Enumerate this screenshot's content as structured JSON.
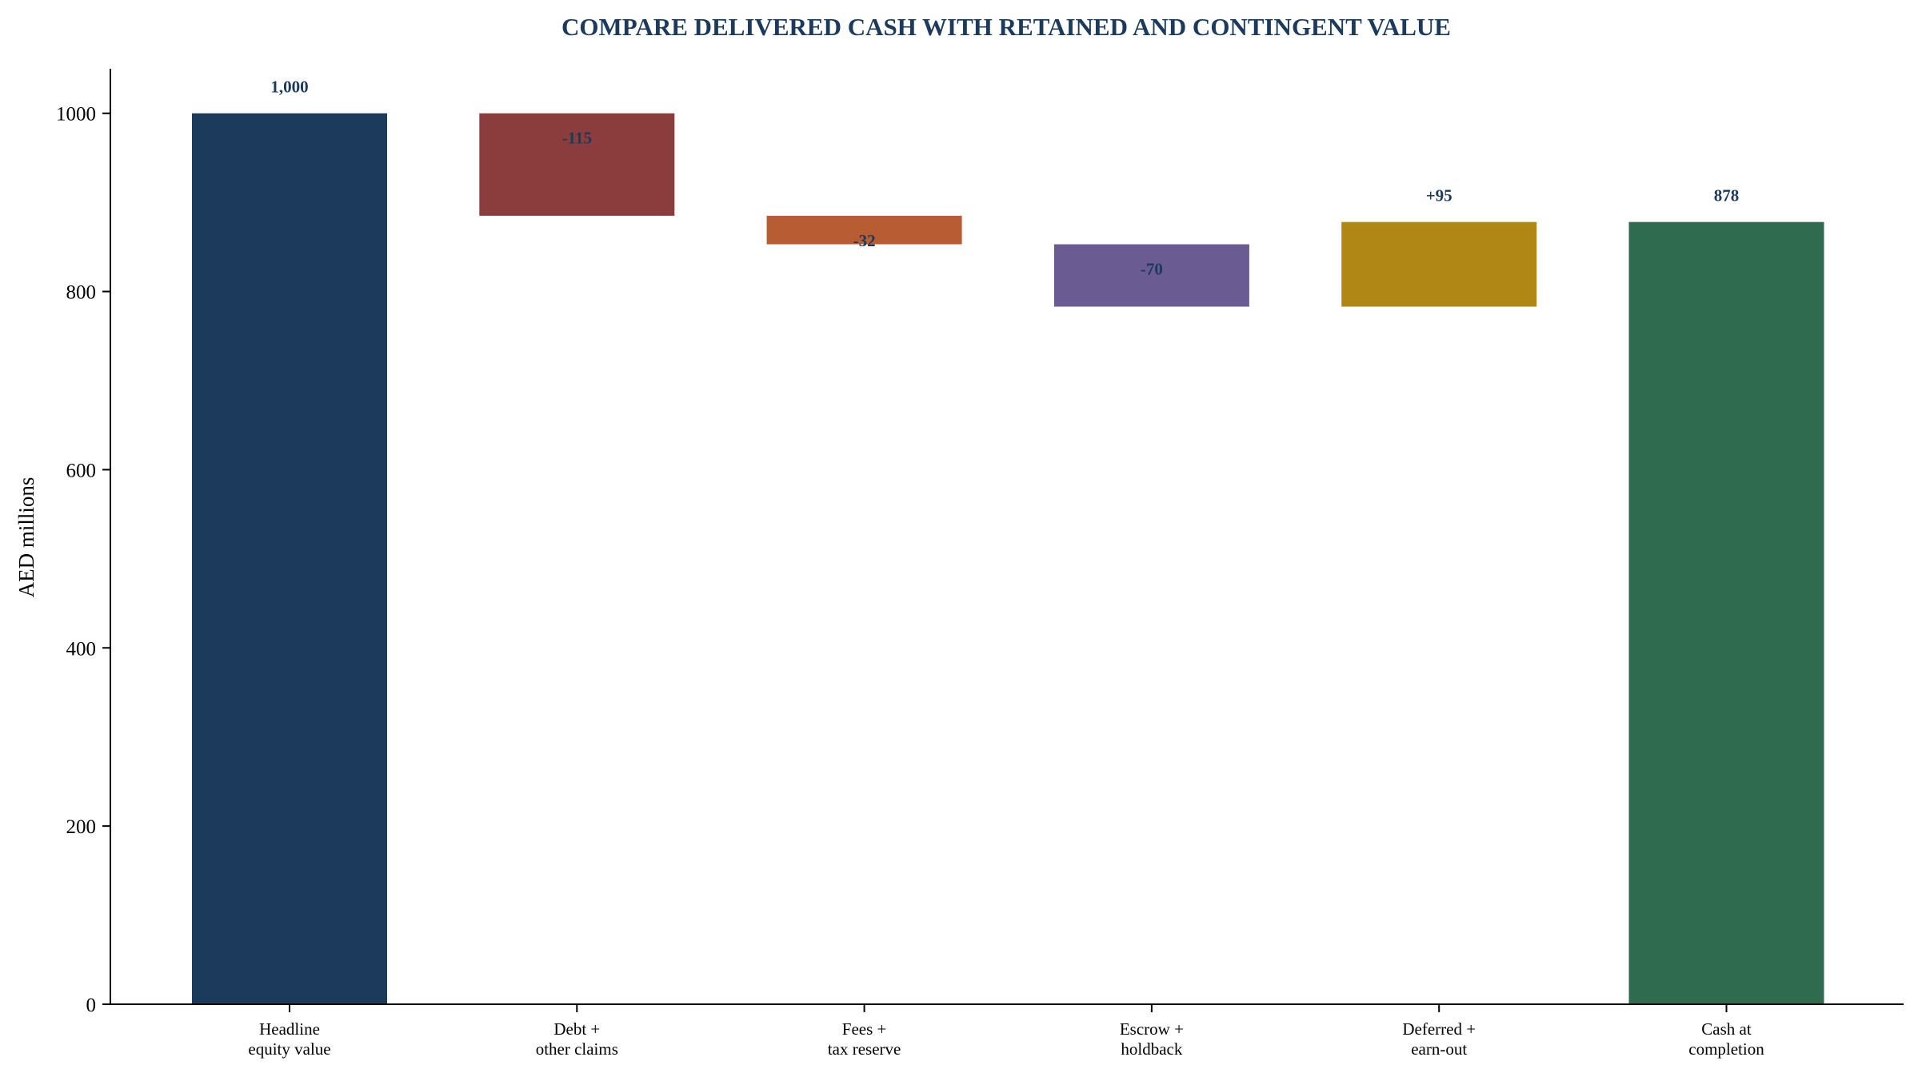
{
  "chart_data": {
    "type": "bar",
    "subtype": "waterfall",
    "title": "COMPARE DELIVERED CASH WITH RETAINED AND CONTINGENT VALUE",
    "ylabel": "AED millions",
    "xlabel": "",
    "ylim": [
      0,
      1050
    ],
    "yticks": [
      0,
      200,
      400,
      600,
      800,
      1000
    ],
    "grid": false,
    "legend": "none",
    "bars": [
      {
        "category": [
          "Headline",
          "equity value"
        ],
        "kind": "total",
        "base": 0,
        "top": 1000,
        "label": "1,000",
        "color": "#1b3a5c"
      },
      {
        "category": [
          "Debt +",
          "other claims"
        ],
        "kind": "decrease",
        "base": 885,
        "top": 1000,
        "label": "-115",
        "color": "#8b3d3d"
      },
      {
        "category": [
          "Fees +",
          "tax reserve"
        ],
        "kind": "decrease",
        "base": 853,
        "top": 885,
        "label": "-32",
        "color": "#b85c33"
      },
      {
        "category": [
          "Escrow +",
          "holdback"
        ],
        "kind": "decrease",
        "base": 783,
        "top": 853,
        "label": "-70",
        "color": "#6a5b93"
      },
      {
        "category": [
          "Deferred +",
          "earn-out"
        ],
        "kind": "increase",
        "base": 783,
        "top": 878,
        "label": "+95",
        "color": "#b08715"
      },
      {
        "category": [
          "Cash at",
          "completion"
        ],
        "kind": "total",
        "base": 0,
        "top": 878,
        "label": "878",
        "color": "#2e6b4f"
      }
    ]
  }
}
